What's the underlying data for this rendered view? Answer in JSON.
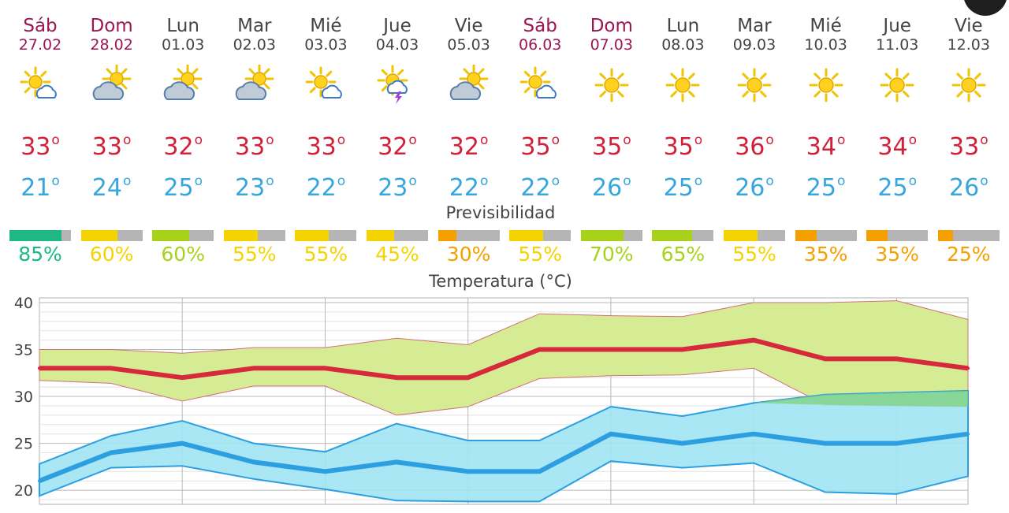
{
  "days": [
    {
      "name": "Sáb",
      "date": "27.02",
      "weekend": true,
      "icon": "sun-cloud-icon",
      "max": "33",
      "min": "21",
      "prob": "85%",
      "prob_value": 85,
      "prob_color": "#1eb882"
    },
    {
      "name": "Dom",
      "date": "28.02",
      "weekend": true,
      "icon": "cloud-sun-icon",
      "max": "33",
      "min": "24",
      "prob": "60%",
      "prob_value": 60,
      "prob_color": "#f5d300"
    },
    {
      "name": "Lun",
      "date": "01.03",
      "weekend": false,
      "icon": "cloud-sun-icon",
      "max": "32",
      "min": "25",
      "prob": "60%",
      "prob_value": 60,
      "prob_color": "#a8d21a"
    },
    {
      "name": "Mar",
      "date": "02.03",
      "weekend": false,
      "icon": "cloud-sun-icon",
      "max": "33",
      "min": "23",
      "prob": "55%",
      "prob_value": 55,
      "prob_color": "#f5d300"
    },
    {
      "name": "Mié",
      "date": "03.03",
      "weekend": false,
      "icon": "sun-cloud-icon",
      "max": "33",
      "min": "22",
      "prob": "55%",
      "prob_value": 55,
      "prob_color": "#f5d300"
    },
    {
      "name": "Jue",
      "date": "04.03",
      "weekend": false,
      "icon": "sun-storm-icon",
      "max": "32",
      "min": "23",
      "prob": "45%",
      "prob_value": 45,
      "prob_color": "#f5d300"
    },
    {
      "name": "Vie",
      "date": "05.03",
      "weekend": false,
      "icon": "cloud-sun-icon",
      "max": "32",
      "min": "22",
      "prob": "30%",
      "prob_value": 30,
      "prob_color": "#f5a000"
    },
    {
      "name": "Sáb",
      "date": "06.03",
      "weekend": true,
      "icon": "sun-cloud-icon",
      "max": "35",
      "min": "22",
      "prob": "55%",
      "prob_value": 55,
      "prob_color": "#f5d300"
    },
    {
      "name": "Dom",
      "date": "07.03",
      "weekend": true,
      "icon": "sun-icon",
      "max": "35",
      "min": "26",
      "prob": "70%",
      "prob_value": 70,
      "prob_color": "#a8d21a"
    },
    {
      "name": "Lun",
      "date": "08.03",
      "weekend": false,
      "icon": "sun-icon",
      "max": "35",
      "min": "25",
      "prob": "65%",
      "prob_value": 65,
      "prob_color": "#a8d21a"
    },
    {
      "name": "Mar",
      "date": "09.03",
      "weekend": false,
      "icon": "sun-icon",
      "max": "36",
      "min": "26",
      "prob": "55%",
      "prob_value": 55,
      "prob_color": "#f5d300"
    },
    {
      "name": "Mié",
      "date": "10.03",
      "weekend": false,
      "icon": "sun-icon",
      "max": "34",
      "min": "25",
      "prob": "35%",
      "prob_value": 35,
      "prob_color": "#f5a000"
    },
    {
      "name": "Jue",
      "date": "11.03",
      "weekend": false,
      "icon": "sun-icon",
      "max": "34",
      "min": "25",
      "prob": "35%",
      "prob_value": 35,
      "prob_color": "#f5a000"
    },
    {
      "name": "Vie",
      "date": "12.03",
      "weekend": false,
      "icon": "sun-icon",
      "max": "33",
      "min": "26",
      "prob": "25%",
      "prob_value": 25,
      "prob_color": "#f5a000"
    }
  ],
  "degree_symbol": "o",
  "predictability_title": "Previsibilidad",
  "chart_data": {
    "type": "area",
    "title": "Temperatura (°C)",
    "ylim": [
      18.5,
      40.5
    ],
    "yticks": [
      20,
      25,
      30,
      35,
      40
    ],
    "grid": true,
    "categories": [
      "27.02",
      "28.02",
      "01.03",
      "02.03",
      "03.03",
      "04.03",
      "05.03",
      "06.03",
      "07.03",
      "08.03",
      "09.03",
      "10.03",
      "11.03",
      "12.03"
    ],
    "series": [
      {
        "values": [
          33,
          33,
          32,
          33,
          33,
          32,
          32,
          35,
          35,
          35,
          36,
          34,
          34,
          33
        ],
        "color": "#d62a3c"
      },
      {
        "values": [
          21,
          24,
          25,
          23,
          22,
          23,
          22,
          22,
          26,
          25,
          26,
          25,
          25,
          26
        ],
        "color": "#2d9fe0"
      }
    ],
    "max_band": {
      "upper": [
        35,
        35,
        34.6,
        35.2,
        35.2,
        36.2,
        35.5,
        38.8,
        38.6,
        38.5,
        40,
        40,
        40.2,
        38.2
      ],
      "lower": [
        31.7,
        31.4,
        29.5,
        31.1,
        31.1,
        28,
        28.9,
        31.9,
        32.2,
        32.3,
        33,
        29.1,
        29,
        28.9
      ],
      "color": "#d5ec95"
    },
    "min_band": {
      "upper": [
        22.8,
        25.8,
        27.4,
        25,
        24.1,
        27.1,
        25.3,
        25.3,
        28.9,
        27.9,
        29.3,
        30.2,
        30.4,
        30.6
      ],
      "lower": [
        19.4,
        22.4,
        22.6,
        21.2,
        20.1,
        18.9,
        18.8,
        18.8,
        23.1,
        22.4,
        22.9,
        19.8,
        19.6,
        21.5
      ],
      "color": "#9ee4f2"
    },
    "overlap_color": "#7fd27f"
  }
}
